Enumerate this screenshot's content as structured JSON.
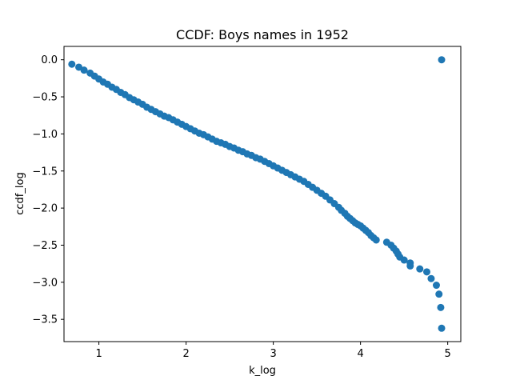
{
  "chart_data": {
    "type": "scatter",
    "title": "CCDF: Boys names in 1952",
    "xlabel": "k_log",
    "ylabel": "ccdf_log",
    "xlim": [
      0.6,
      5.15
    ],
    "ylim": [
      -3.8,
      0.18
    ],
    "xticks": [
      1,
      2,
      3,
      4,
      5
    ],
    "yticks": [
      0.0,
      -0.5,
      -1.0,
      -1.5,
      -2.0,
      -2.5,
      -3.0,
      -3.5
    ],
    "xtick_labels": [
      "1",
      "2",
      "3",
      "4",
      "5"
    ],
    "ytick_labels": [
      "0.0",
      "−0.5",
      "−1.0",
      "−1.5",
      "−2.0",
      "−2.5",
      "−3.0",
      "−3.5"
    ],
    "grid": false,
    "legend": "none",
    "color": "#1f77b4",
    "x": [
      0.69,
      0.77,
      0.83,
      0.9,
      0.95,
      1.0,
      1.05,
      1.1,
      1.15,
      1.2,
      1.25,
      1.3,
      1.35,
      1.4,
      1.45,
      1.5,
      1.55,
      1.6,
      1.65,
      1.7,
      1.75,
      1.8,
      1.85,
      1.9,
      1.95,
      2.0,
      2.05,
      2.1,
      2.15,
      2.2,
      2.25,
      2.3,
      2.35,
      2.4,
      2.45,
      2.5,
      2.55,
      2.6,
      2.65,
      2.7,
      2.75,
      2.8,
      2.85,
      2.9,
      2.95,
      3.0,
      3.05,
      3.1,
      3.15,
      3.2,
      3.25,
      3.3,
      3.35,
      3.4,
      3.45,
      3.5,
      3.55,
      3.6,
      3.65,
      3.7,
      3.75,
      3.78,
      3.82,
      3.85,
      3.88,
      3.91,
      3.94,
      3.97,
      4.0,
      4.03,
      4.06,
      4.09,
      4.12,
      4.15,
      4.18,
      4.3,
      4.35,
      4.38,
      4.41,
      4.43,
      4.45,
      4.5,
      4.57,
      4.57,
      4.68,
      4.76,
      4.81,
      4.87,
      4.9,
      4.92,
      4.93,
      4.93
    ],
    "y": [
      -0.06,
      -0.1,
      -0.14,
      -0.18,
      -0.22,
      -0.26,
      -0.3,
      -0.33,
      -0.37,
      -0.4,
      -0.44,
      -0.47,
      -0.51,
      -0.54,
      -0.57,
      -0.6,
      -0.64,
      -0.67,
      -0.7,
      -0.73,
      -0.76,
      -0.78,
      -0.81,
      -0.84,
      -0.87,
      -0.9,
      -0.93,
      -0.96,
      -0.99,
      -1.01,
      -1.04,
      -1.07,
      -1.1,
      -1.12,
      -1.14,
      -1.17,
      -1.19,
      -1.22,
      -1.24,
      -1.27,
      -1.29,
      -1.32,
      -1.34,
      -1.37,
      -1.4,
      -1.43,
      -1.46,
      -1.49,
      -1.52,
      -1.55,
      -1.58,
      -1.61,
      -1.64,
      -1.68,
      -1.72,
      -1.76,
      -1.8,
      -1.84,
      -1.89,
      -1.94,
      -1.99,
      -2.03,
      -2.07,
      -2.11,
      -2.14,
      -2.17,
      -2.2,
      -2.22,
      -2.24,
      -2.27,
      -2.3,
      -2.33,
      -2.37,
      -2.4,
      -2.43,
      -2.46,
      -2.5,
      -2.54,
      -2.58,
      -2.62,
      -2.66,
      -2.7,
      -2.74,
      -2.78,
      -2.82,
      -2.86,
      -2.95,
      -3.04,
      -3.16,
      -3.34,
      -3.62,
      0.0
    ]
  }
}
